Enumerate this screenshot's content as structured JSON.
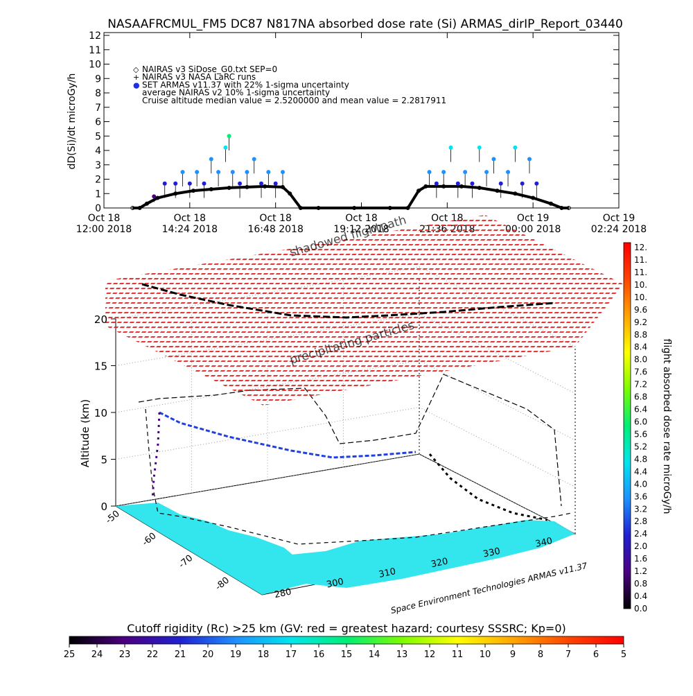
{
  "title": "NASAAFRCMUL_FM5 DC87 N817NA absorbed dose rate (Si) ARMAS_dirIP_Report_03440",
  "chart_data": [
    {
      "type": "line",
      "panel": "time-series",
      "ylabel": "dD(Si)/dt microGy/h",
      "ylim": [
        0,
        12
      ],
      "y_ticks": [
        "0",
        "1",
        "2",
        "3",
        "4",
        "5",
        "6",
        "7",
        "8",
        "9",
        "10",
        "11",
        "12"
      ],
      "x_ticks": [
        {
          "date": "Oct 18",
          "time": "12:00 2018"
        },
        {
          "date": "Oct 18",
          "time": "14:24 2018"
        },
        {
          "date": "Oct 18",
          "time": "16:48 2018"
        },
        {
          "date": "Oct 18",
          "time": "19:12 2018"
        },
        {
          "date": "Oct 18",
          "time": "21:36 2018"
        },
        {
          "date": "Oct 19",
          "time": "00:00 2018"
        },
        {
          "date": "Oct 19",
          "time": "02:24 2018"
        }
      ],
      "legend": [
        {
          "marker": "◇",
          "label": "NAIRAS v3 SiDose_G0.txt SEP=0"
        },
        {
          "marker": "+",
          "label": "NAIRAS v3 NASA LaRC runs"
        },
        {
          "marker": "●",
          "label": "SET ARMAS v11.37 with 22% 1-sigma uncertainty"
        },
        {
          "marker": "",
          "label": "average NAIRAS v2 10% 1-sigma uncertainty"
        },
        {
          "marker": "",
          "label": "Cruise altitude median value = 2.5200000 and mean value = 2.2817911"
        }
      ],
      "series": [
        {
          "name": "NAIRAS v3 SiDose_G0.txt SEP=0",
          "x": [
            12.8,
            13.0,
            13.2,
            13.5,
            14.0,
            14.5,
            15.0,
            15.5,
            16.0,
            16.5,
            17.0,
            17.2,
            17.5,
            18.0,
            19.0,
            20.0,
            20.5,
            20.8,
            21.0,
            21.5,
            22.0,
            22.5,
            23.0,
            23.5,
            24.0,
            24.5,
            24.8,
            25.0
          ],
          "y": [
            0.0,
            0.0,
            0.3,
            0.7,
            1.0,
            1.2,
            1.3,
            1.4,
            1.45,
            1.5,
            1.45,
            1.0,
            0.0,
            0.0,
            0.0,
            0.0,
            0.0,
            1.2,
            1.5,
            1.5,
            1.5,
            1.4,
            1.2,
            1.0,
            0.7,
            0.3,
            0.0,
            0.0
          ]
        },
        {
          "name": "SET ARMAS v11.37 with 22% 1-sigma uncertainty",
          "x": [
            13.4,
            13.7,
            14.0,
            14.2,
            14.4,
            14.6,
            14.8,
            15.0,
            15.2,
            15.4,
            15.5,
            15.6,
            15.8,
            16.0,
            16.2,
            16.4,
            16.6,
            16.8,
            17.0,
            21.1,
            21.3,
            21.5,
            21.7,
            21.9,
            22.1,
            22.3,
            22.5,
            22.7,
            22.9,
            23.1,
            23.3,
            23.5,
            23.7,
            23.9,
            24.1
          ],
          "y": [
            0.8,
            1.7,
            1.7,
            2.5,
            1.7,
            2.5,
            1.7,
            3.4,
            2.5,
            4.2,
            5.0,
            2.5,
            1.7,
            2.5,
            3.4,
            1.7,
            2.5,
            1.7,
            2.5,
            2.5,
            1.7,
            2.5,
            4.2,
            1.7,
            2.5,
            1.7,
            4.2,
            2.5,
            3.4,
            1.7,
            2.5,
            4.2,
            1.7,
            3.4,
            1.7
          ]
        }
      ]
    },
    {
      "type": "3d-flightpath",
      "panel": "3D",
      "zlabel": "Altitude (km)",
      "z_ticks": [
        "0",
        "5",
        "10",
        "15",
        "20"
      ],
      "lat_ticks": [
        "-50",
        "-60",
        "-70",
        "-80"
      ],
      "lon_ticks": [
        "280",
        "300",
        "310",
        "320",
        "330",
        "340"
      ],
      "annotations": [
        "shadowed flightpath",
        "precipitating particles"
      ],
      "credit": "Space Environment Technologies ARMAS v11.37"
    },
    {
      "type": "colorbar",
      "panel": "dose-rate-colorbar",
      "label": "flight absorbed dose rate microGy/h",
      "ticks": [
        "12.",
        "11.",
        "11.",
        "10.",
        "10.",
        "9.6",
        "9.2",
        "8.8",
        "8.4",
        "8.0",
        "7.6",
        "7.2",
        "6.8",
        "6.4",
        "6.0",
        "5.6",
        "5.2",
        "4.8",
        "4.4",
        "4.0",
        "3.6",
        "3.2",
        "2.8",
        "2.4",
        "2.0",
        "1.6",
        "1.2",
        "0.8",
        "0.4",
        "0.0"
      ]
    },
    {
      "type": "colorbar",
      "panel": "cutoff-rigidity-colorbar",
      "label": "Cutoff rigidity (Rc) >25 km (GV: red = greatest hazard; courtesy SSSRC; Kp=0)",
      "ticks": [
        "25",
        "24",
        "23",
        "22",
        "21",
        "20",
        "19",
        "18",
        "17",
        "16",
        "15",
        "14",
        "13",
        "12",
        "11",
        "10",
        "9",
        "8",
        "7",
        "6",
        "5"
      ]
    }
  ],
  "colors": {
    "dose_scale": [
      "#000000",
      "#4b0082",
      "#2020d0",
      "#1e90ff",
      "#00e5ee",
      "#00ee76",
      "#7cfc00",
      "#ffff00",
      "#ffa500",
      "#ff4500",
      "#ff0000"
    ],
    "rigidity_scale": [
      "#000000",
      "#4b0082",
      "#2020d0",
      "#1e90ff",
      "#00e5ee",
      "#00ee76",
      "#7cfc00",
      "#ffff00",
      "#ffa500",
      "#ff4500",
      "#ff0000"
    ],
    "shadow_layer": "#e02020",
    "land": "#33e6ee"
  }
}
